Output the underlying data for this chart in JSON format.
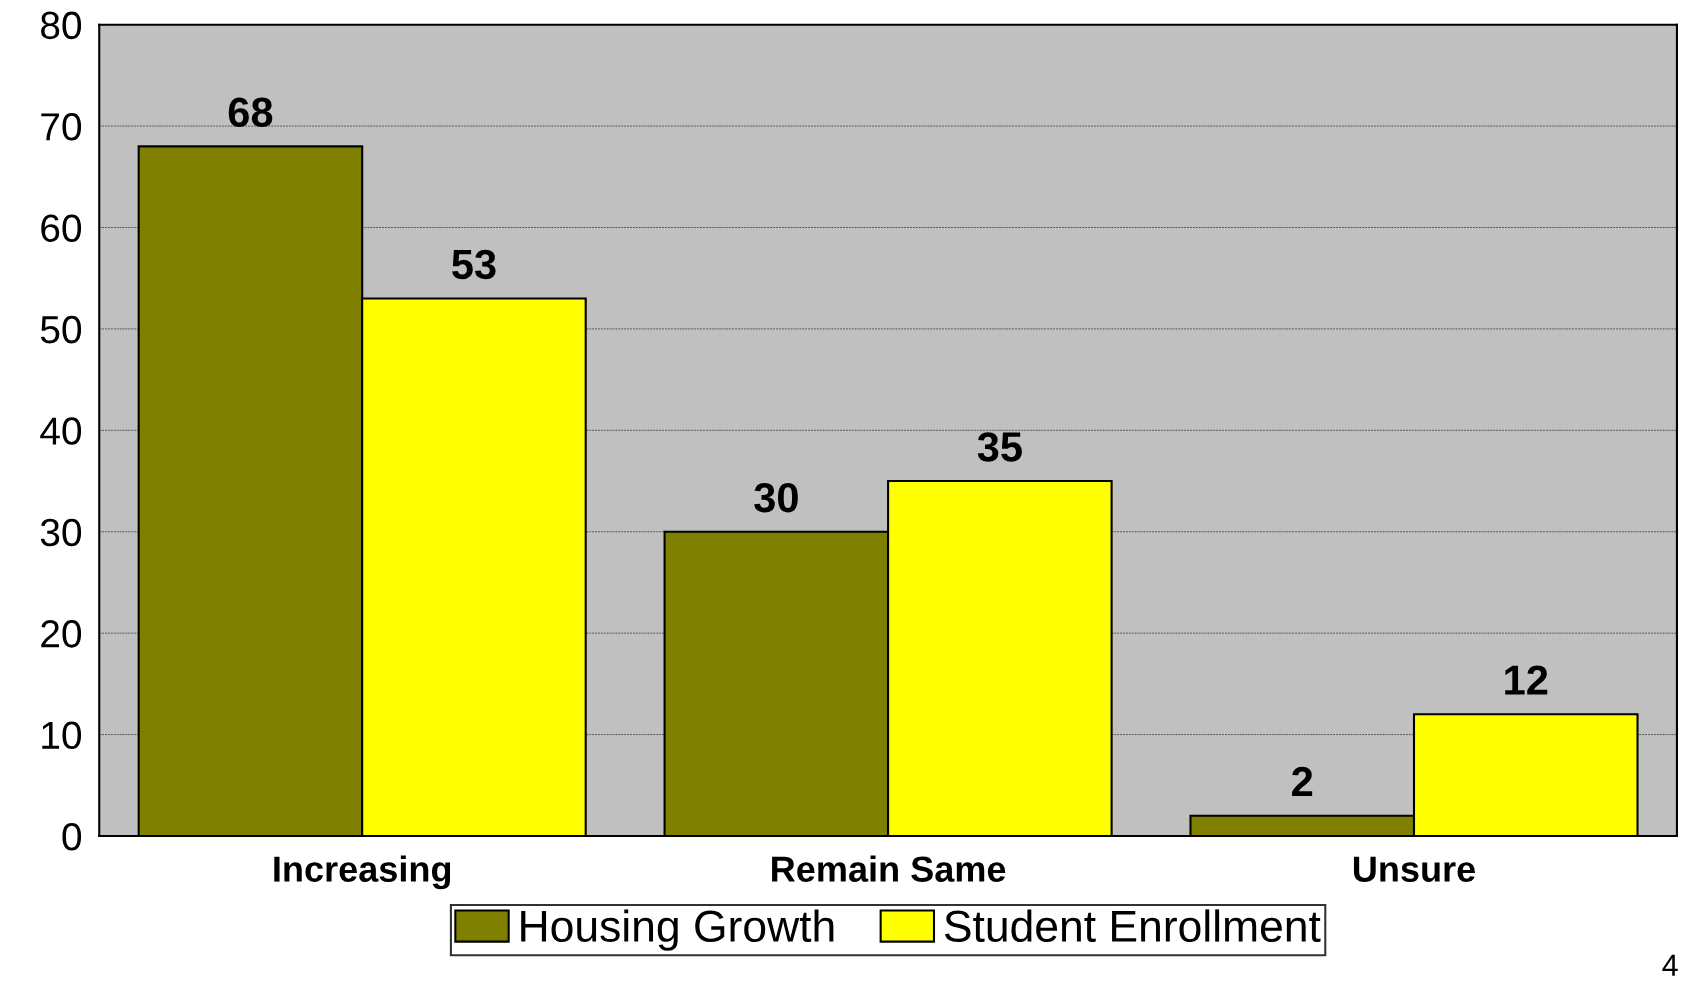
{
  "chart_data": {
    "type": "bar",
    "categories": [
      "Increasing",
      "Remain Same",
      "Unsure"
    ],
    "series": [
      {
        "name": "Housing Growth",
        "color": "#808000",
        "values": [
          68,
          30,
          2
        ]
      },
      {
        "name": "Student Enrollment",
        "color": "#ffff00",
        "values": [
          53,
          35,
          12
        ]
      }
    ],
    "ylim": [
      0,
      80
    ],
    "yticks": [
      0,
      10,
      20,
      30,
      40,
      50,
      60,
      70,
      80
    ],
    "grid": "y",
    "legend": "bottom",
    "data_labels": true,
    "annotations": [
      "4"
    ]
  }
}
